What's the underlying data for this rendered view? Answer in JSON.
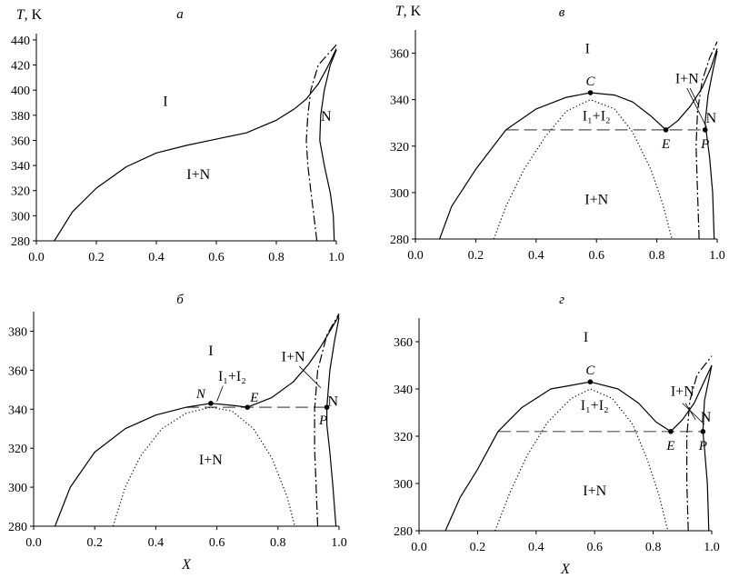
{
  "chart_data": [
    {
      "panel": "a",
      "type": "line",
      "title": "а",
      "ylabel": "T, K",
      "xlabel": "",
      "xlim": [
        0,
        1
      ],
      "ylim": [
        280,
        445
      ],
      "xticks": [
        "0.0",
        "0.2",
        "0.4",
        "0.6",
        "0.8",
        "1.0"
      ],
      "yticks": [
        "280",
        "300",
        "320",
        "340",
        "360",
        "380",
        "400",
        "420",
        "440"
      ],
      "regions": [
        {
          "label": "I",
          "x": 0.43,
          "y": 391
        },
        {
          "label": "I+N",
          "x": 0.54,
          "y": 333
        },
        {
          "label": "N",
          "x": 0.966,
          "y": 379
        }
      ],
      "points": [],
      "dashed_line": null,
      "series": [
        {
          "style": "solid",
          "points": [
            [
              0.06,
              280
            ],
            [
              0.12,
              303
            ],
            [
              0.2,
              322
            ],
            [
              0.3,
              339
            ],
            [
              0.4,
              350
            ],
            [
              0.5,
              356
            ],
            [
              0.6,
              361
            ],
            [
              0.7,
              366
            ],
            [
              0.8,
              376
            ],
            [
              0.86,
              385
            ],
            [
              0.9,
              393
            ],
            [
              0.94,
              405
            ],
            [
              0.97,
              418
            ],
            [
              1.0,
              433
            ]
          ]
        },
        {
          "style": "solid",
          "points": [
            [
              0.993,
              280
            ],
            [
              0.99,
              300
            ],
            [
              0.98,
              318
            ],
            [
              0.96,
              340
            ],
            [
              0.945,
              360
            ],
            [
              0.948,
              380
            ],
            [
              0.96,
              400
            ],
            [
              0.98,
              420
            ],
            [
              1.0,
              432
            ]
          ]
        },
        {
          "style": "dashdot",
          "points": [
            [
              0.935,
              280
            ],
            [
              0.925,
              300
            ],
            [
              0.915,
              320
            ],
            [
              0.905,
              340
            ],
            [
              0.9,
              360
            ],
            [
              0.905,
              380
            ],
            [
              0.915,
              400
            ],
            [
              0.94,
              420
            ],
            [
              1.0,
              436
            ]
          ]
        }
      ]
    },
    {
      "panel": "b",
      "type": "line",
      "title": "б",
      "ylabel": "",
      "xlabel": "X",
      "xlim": [
        0,
        1
      ],
      "ylim": [
        280,
        390
      ],
      "xticks": [
        "0.0",
        "0.2",
        "0.4",
        "0.6",
        "0.8",
        "1.0"
      ],
      "yticks": [
        "280",
        "300",
        "320",
        "340",
        "360",
        "380"
      ],
      "regions": [
        {
          "label": "I",
          "x": 0.58,
          "y": 370
        },
        {
          "label": "I+N",
          "x": 0.58,
          "y": 314
        },
        {
          "label": "I₁+I₂",
          "x": 0.65,
          "y": 357
        },
        {
          "label": "I+N",
          "x": 0.85,
          "y": 367
        },
        {
          "label": "N",
          "x": 0.98,
          "y": 344
        }
      ],
      "points": [
        {
          "label": "N",
          "italic": false,
          "x": 0.58,
          "y": 343
        },
        {
          "label": "E",
          "italic": true,
          "x": 0.7,
          "y": 341
        },
        {
          "label": "P",
          "italic": true,
          "x": 0.96,
          "y": 341
        }
      ],
      "dashed_line": {
        "y": 341,
        "x1": 0.5,
        "x2": 0.96
      },
      "series": [
        {
          "style": "solid",
          "points": [
            [
              0.07,
              280
            ],
            [
              0.12,
              300
            ],
            [
              0.2,
              318
            ],
            [
              0.3,
              330
            ],
            [
              0.4,
              337
            ],
            [
              0.5,
              341
            ],
            [
              0.58,
              343
            ],
            [
              0.65,
              342
            ],
            [
              0.7,
              341
            ]
          ]
        },
        {
          "style": "solid",
          "points": [
            [
              0.7,
              341
            ],
            [
              0.78,
              346
            ],
            [
              0.85,
              354
            ],
            [
              0.9,
              363
            ],
            [
              0.94,
              372
            ],
            [
              0.97,
              380
            ],
            [
              1.0,
              388
            ]
          ]
        },
        {
          "style": "solid",
          "points": [
            [
              0.99,
              280
            ],
            [
              0.98,
              300
            ],
            [
              0.97,
              318
            ],
            [
              0.96,
              332
            ],
            [
              0.96,
              341
            ],
            [
              0.97,
              360
            ],
            [
              0.985,
              375
            ],
            [
              1.0,
              387
            ]
          ]
        },
        {
          "style": "dashdot",
          "points": [
            [
              0.93,
              280
            ],
            [
              0.925,
              300
            ],
            [
              0.92,
              320
            ],
            [
              0.92,
              340
            ],
            [
              0.93,
              360
            ],
            [
              0.96,
              378
            ],
            [
              1.0,
              389
            ]
          ]
        },
        {
          "style": "dotted",
          "points": [
            [
              0.26,
              280
            ],
            [
              0.3,
              300
            ],
            [
              0.35,
              316
            ],
            [
              0.42,
              330
            ],
            [
              0.5,
              338
            ],
            [
              0.58,
              341
            ],
            [
              0.65,
              339
            ],
            [
              0.72,
              330
            ],
            [
              0.78,
              315
            ],
            [
              0.83,
              295
            ],
            [
              0.855,
              280
            ]
          ]
        }
      ]
    },
    {
      "panel": "v",
      "type": "line",
      "title": "в",
      "ylabel": "T, K",
      "xlabel": "",
      "xlim": [
        0,
        1
      ],
      "ylim": [
        280,
        370
      ],
      "xticks": [
        "0.0",
        "0.2",
        "0.4",
        "0.6",
        "0.8",
        "1.0"
      ],
      "yticks": [
        "280",
        "300",
        "320",
        "340",
        "360"
      ],
      "regions": [
        {
          "label": "I",
          "x": 0.57,
          "y": 362
        },
        {
          "label": "I₁+I₂",
          "x": 0.6,
          "y": 333
        },
        {
          "label": "I+N",
          "x": 0.6,
          "y": 297
        },
        {
          "label": "I+N",
          "x": 0.9,
          "y": 349
        },
        {
          "label": "N",
          "x": 0.98,
          "y": 332
        }
      ],
      "points": [
        {
          "label": "C",
          "italic": true,
          "x": 0.58,
          "y": 343
        },
        {
          "label": "E",
          "italic": true,
          "x": 0.83,
          "y": 327
        },
        {
          "label": "P",
          "italic": true,
          "x": 0.96,
          "y": 327
        }
      ],
      "dashed_line": {
        "y": 327,
        "x1": 0.3,
        "x2": 0.96
      },
      "series": [
        {
          "style": "solid",
          "points": [
            [
              0.08,
              280
            ],
            [
              0.12,
              294
            ],
            [
              0.2,
              310
            ],
            [
              0.3,
              327
            ],
            [
              0.4,
              336
            ],
            [
              0.5,
              341
            ],
            [
              0.58,
              343
            ],
            [
              0.66,
              342
            ],
            [
              0.72,
              339
            ],
            [
              0.78,
              333
            ],
            [
              0.83,
              327
            ]
          ]
        },
        {
          "style": "solid",
          "points": [
            [
              0.83,
              327
            ],
            [
              0.87,
              331
            ],
            [
              0.91,
              337
            ],
            [
              0.95,
              345
            ],
            [
              0.98,
              354
            ],
            [
              1.0,
              362
            ]
          ]
        },
        {
          "style": "solid",
          "points": [
            [
              0.99,
              280
            ],
            [
              0.985,
              300
            ],
            [
              0.975,
              315
            ],
            [
              0.965,
              325
            ],
            [
              0.96,
              330
            ],
            [
              0.97,
              342
            ],
            [
              0.985,
              352
            ],
            [
              1.0,
              361
            ]
          ]
        },
        {
          "style": "dashdot",
          "points": [
            [
              0.94,
              280
            ],
            [
              0.935,
              300
            ],
            [
              0.93,
              320
            ],
            [
              0.935,
              335
            ],
            [
              0.95,
              348
            ],
            [
              0.975,
              358
            ],
            [
              1.0,
              365
            ]
          ]
        },
        {
          "style": "dotted",
          "points": [
            [
              0.26,
              280
            ],
            [
              0.3,
              294
            ],
            [
              0.36,
              310
            ],
            [
              0.43,
              324
            ],
            [
              0.5,
              335
            ],
            [
              0.58,
              340
            ],
            [
              0.66,
              336
            ],
            [
              0.72,
              326
            ],
            [
              0.78,
              310
            ],
            [
              0.82,
              295
            ],
            [
              0.85,
              280
            ]
          ]
        }
      ]
    },
    {
      "panel": "g",
      "type": "line",
      "title": "г",
      "ylabel": "",
      "xlabel": "X",
      "xlim": [
        0,
        1
      ],
      "ylim": [
        280,
        370
      ],
      "xticks": [
        "0.0",
        "0.2",
        "0.4",
        "0.6",
        "0.8",
        "1.0"
      ],
      "yticks": [
        "280",
        "300",
        "320",
        "340",
        "360"
      ],
      "regions": [
        {
          "label": "I",
          "x": 0.57,
          "y": 362
        },
        {
          "label": "I₁+I₂",
          "x": 0.6,
          "y": 333
        },
        {
          "label": "I+N",
          "x": 0.6,
          "y": 297
        },
        {
          "label": "I+N",
          "x": 0.9,
          "y": 339
        },
        {
          "label": "N",
          "x": 0.98,
          "y": 328
        }
      ],
      "points": [
        {
          "label": "C",
          "italic": true,
          "x": 0.585,
          "y": 343
        },
        {
          "label": "E",
          "italic": true,
          "x": 0.86,
          "y": 322
        },
        {
          "label": "P",
          "italic": true,
          "x": 0.97,
          "y": 322
        }
      ],
      "dashed_line": {
        "y": 322,
        "x1": 0.27,
        "x2": 0.97
      },
      "series": [
        {
          "style": "solid",
          "points": [
            [
              0.09,
              280
            ],
            [
              0.14,
              294
            ],
            [
              0.2,
              306
            ],
            [
              0.27,
              322
            ],
            [
              0.35,
              332
            ],
            [
              0.45,
              340
            ],
            [
              0.585,
              343
            ],
            [
              0.68,
              340
            ],
            [
              0.75,
              334
            ],
            [
              0.81,
              326
            ],
            [
              0.86,
              322
            ]
          ]
        },
        {
          "style": "solid",
          "points": [
            [
              0.86,
              322
            ],
            [
              0.9,
              327
            ],
            [
              0.94,
              334
            ],
            [
              0.97,
              342
            ],
            [
              1.0,
              350
            ]
          ]
        },
        {
          "style": "solid",
          "points": [
            [
              0.99,
              280
            ],
            [
              0.985,
              300
            ],
            [
              0.975,
              315
            ],
            [
              0.97,
              322
            ],
            [
              0.975,
              335
            ],
            [
              0.99,
              344
            ],
            [
              1.0,
              350
            ]
          ]
        },
        {
          "style": "dashdot",
          "points": [
            [
              0.92,
              280
            ],
            [
              0.915,
              300
            ],
            [
              0.915,
              320
            ],
            [
              0.925,
              335
            ],
            [
              0.95,
              346
            ],
            [
              1.0,
              354
            ]
          ]
        },
        {
          "style": "dotted",
          "points": [
            [
              0.26,
              280
            ],
            [
              0.31,
              296
            ],
            [
              0.37,
              312
            ],
            [
              0.44,
              326
            ],
            [
              0.52,
              336
            ],
            [
              0.585,
              340
            ],
            [
              0.66,
              336
            ],
            [
              0.73,
              325
            ],
            [
              0.78,
              310
            ],
            [
              0.82,
              295
            ],
            [
              0.85,
              280
            ]
          ]
        }
      ]
    }
  ]
}
